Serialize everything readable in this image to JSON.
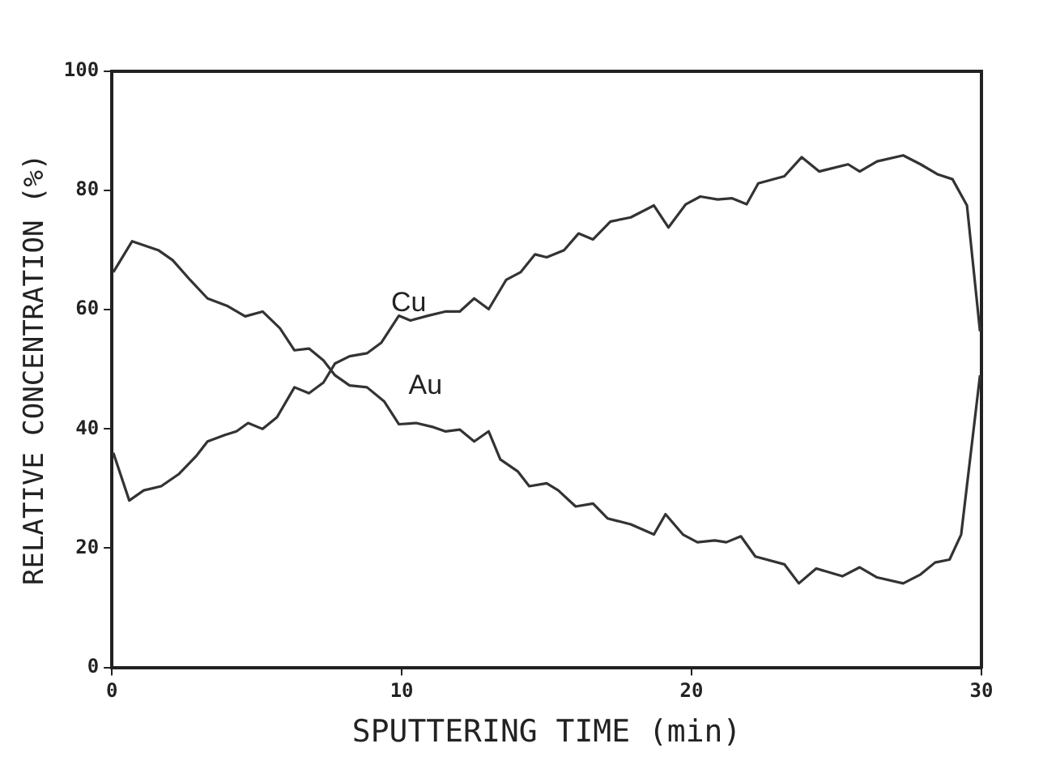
{
  "chart_data": {
    "type": "line",
    "xlabel": "SPUTTERING TIME (min)",
    "ylabel": "RELATIVE CONCENTRATION (%)",
    "xlim": [
      0,
      30
    ],
    "xticks": [
      0,
      10,
      20,
      30
    ],
    "ylim": [
      0,
      100
    ],
    "yticks": [
      0,
      20,
      40,
      60,
      80,
      100
    ],
    "grid": false,
    "legend": false,
    "marker": "none",
    "line_style": "solid",
    "series": [
      {
        "name": "Cu",
        "color": "#333333",
        "x": [
          0.05,
          0.6,
          1.1,
          1.7,
          2.3,
          2.9,
          3.3,
          3.9,
          4.3,
          4.7,
          5.2,
          5.7,
          6.3,
          6.8,
          7.3,
          7.7,
          8.2,
          8.8,
          9.3,
          9.9,
          10.3,
          10.9,
          11.5,
          12.0,
          12.5,
          13.0,
          13.6,
          14.1,
          14.6,
          15.0,
          15.6,
          16.1,
          16.6,
          17.2,
          17.9,
          18.7,
          19.2,
          19.8,
          20.3,
          20.9,
          21.4,
          21.9,
          22.3,
          23.2,
          23.8,
          24.4,
          25.4,
          25.8,
          26.4,
          27.3,
          27.9,
          28.5,
          29.0,
          29.5,
          29.95
        ],
        "values": [
          36,
          28,
          29.7,
          30.4,
          32.4,
          35.4,
          37.9,
          39,
          39.6,
          41,
          40,
          42,
          47,
          46,
          47.8,
          51,
          52.2,
          52.7,
          54.5,
          59,
          58.2,
          59,
          59.7,
          59.7,
          61.9,
          60.1,
          65,
          66.3,
          69.3,
          68.8,
          70,
          72.8,
          71.8,
          74.8,
          75.5,
          77.5,
          73.8,
          77.7,
          79,
          78.5,
          78.7,
          77.7,
          81.2,
          82.4,
          85.6,
          83.2,
          84.4,
          83.2,
          84.9,
          85.9,
          84.4,
          82.7,
          81.9,
          77.5,
          56.4
        ]
      },
      {
        "name": "Au",
        "color": "#333333",
        "x": [
          0.05,
          0.7,
          1.6,
          2.1,
          2.7,
          3.3,
          4.0,
          4.6,
          5.2,
          5.8,
          6.3,
          6.8,
          7.3,
          7.7,
          8.2,
          8.8,
          9.4,
          9.9,
          10.5,
          11.1,
          11.5,
          12.0,
          12.5,
          13.0,
          13.4,
          14.0,
          14.4,
          15.0,
          15.4,
          16.0,
          16.6,
          17.1,
          17.9,
          18.7,
          19.1,
          19.7,
          20.2,
          20.8,
          21.2,
          21.7,
          22.2,
          23.2,
          23.7,
          24.3,
          25.2,
          25.8,
          26.4,
          27.3,
          27.9,
          28.4,
          28.9,
          29.3,
          29.95
        ],
        "values": [
          66.3,
          71.5,
          70,
          68.3,
          65,
          61.9,
          60.6,
          58.9,
          59.7,
          56.9,
          53.2,
          53.5,
          51.5,
          49,
          47.3,
          47,
          44.6,
          40.8,
          41,
          40.3,
          39.6,
          39.9,
          37.9,
          39.6,
          34.9,
          32.9,
          30.4,
          30.9,
          29.7,
          27,
          27.5,
          25,
          24,
          22.3,
          25.7,
          22.3,
          21,
          21.3,
          21,
          22,
          18.6,
          17.3,
          14.1,
          16.6,
          15.3,
          16.8,
          15.1,
          14.1,
          15.6,
          17.6,
          18.1,
          22.3,
          49
        ]
      }
    ]
  }
}
